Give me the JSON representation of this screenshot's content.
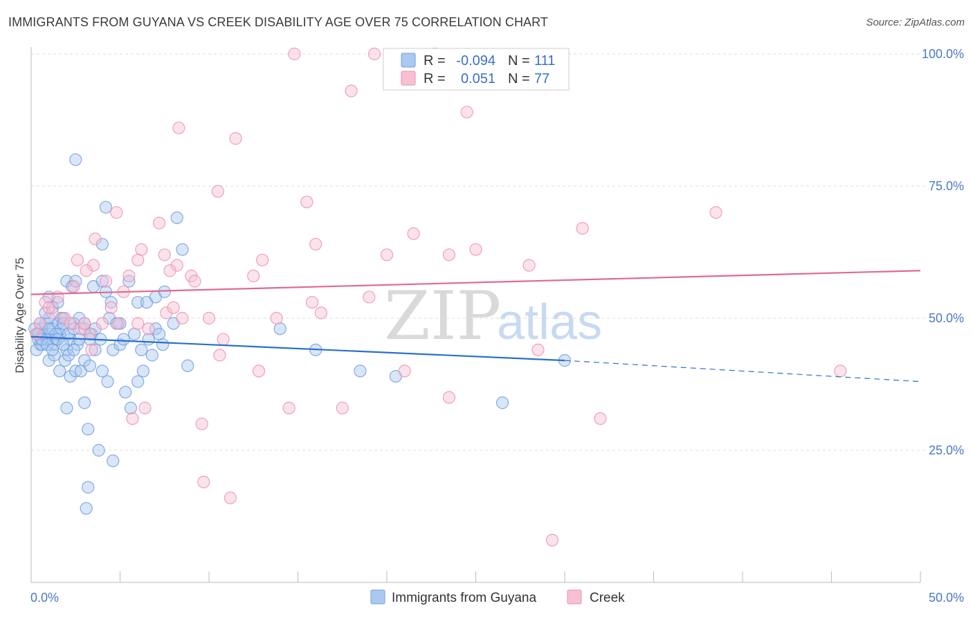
{
  "title": "IMMIGRANTS FROM GUYANA VS CREEK DISABILITY AGE OVER 75 CORRELATION CHART",
  "source": "Source: ZipAtlas.com",
  "legend": {
    "r_label": "R =",
    "n_label": "N =",
    "series1_r": "-0.094",
    "series1_n": "111",
    "series2_r": "0.051",
    "series2_n": "77"
  },
  "watermark": {
    "zip": "ZIP",
    "atlas": "atlas"
  },
  "chart_data": {
    "type": "scatter",
    "ylabel": "Disability Age Over 75",
    "xlim": [
      0,
      50
    ],
    "ylim": [
      0,
      100
    ],
    "x_tick_labels": [
      "0.0%",
      "50.0%"
    ],
    "y_ticks": [
      25,
      50,
      75,
      100
    ],
    "y_tick_labels": [
      "25.0%",
      "50.0%",
      "75.0%",
      "100.0%"
    ],
    "grid": true,
    "legend_position": "top-center",
    "series": [
      {
        "name": "Immigrants from Guyana",
        "color": "#6f9fe0",
        "fill": "#aac8f0",
        "trend": {
          "x0": 0,
          "y0": 46.5,
          "x1": 30,
          "y1": 42.0,
          "dash_to": 50,
          "dash_y": 38.0,
          "color": "#2a6fcc"
        },
        "points": [
          [
            0.3,
            47
          ],
          [
            0.4,
            46
          ],
          [
            0.5,
            45
          ],
          [
            0.6,
            48
          ],
          [
            0.7,
            47
          ],
          [
            0.8,
            49
          ],
          [
            0.9,
            46
          ],
          [
            1.0,
            50
          ],
          [
            1.1,
            47
          ],
          [
            1.2,
            48
          ],
          [
            1.3,
            45
          ],
          [
            1.4,
            46
          ],
          [
            1.5,
            49
          ],
          [
            1.6,
            47
          ],
          [
            1.7,
            48
          ],
          [
            1.8,
            50
          ],
          [
            2.0,
            44
          ],
          [
            2.2,
            46
          ],
          [
            2.4,
            49
          ],
          [
            2.6,
            45
          ],
          [
            0.5,
            49
          ],
          [
            0.8,
            51
          ],
          [
            1.0,
            54
          ],
          [
            1.2,
            52
          ],
          [
            1.5,
            53
          ],
          [
            1.7,
            50
          ],
          [
            2.0,
            57
          ],
          [
            2.3,
            56
          ],
          [
            2.5,
            57
          ],
          [
            3.5,
            56
          ],
          [
            4.0,
            57
          ],
          [
            4.2,
            55
          ],
          [
            4.5,
            53
          ],
          [
            5.0,
            49
          ],
          [
            5.5,
            57
          ],
          [
            6.0,
            53
          ],
          [
            6.5,
            53
          ],
          [
            7.0,
            54
          ],
          [
            7.5,
            55
          ],
          [
            8.0,
            49
          ],
          [
            2.5,
            80
          ],
          [
            4.2,
            71
          ],
          [
            4.0,
            64
          ],
          [
            8.2,
            69
          ],
          [
            8.5,
            63
          ],
          [
            0.3,
            44
          ],
          [
            0.6,
            45
          ],
          [
            1.0,
            42
          ],
          [
            1.3,
            43
          ],
          [
            1.6,
            40
          ],
          [
            1.9,
            42
          ],
          [
            2.2,
            39
          ],
          [
            2.5,
            40
          ],
          [
            2.8,
            40
          ],
          [
            3.0,
            42
          ],
          [
            3.3,
            41
          ],
          [
            3.6,
            44
          ],
          [
            4.0,
            40
          ],
          [
            4.3,
            38
          ],
          [
            4.6,
            44
          ],
          [
            5.0,
            45
          ],
          [
            5.3,
            36
          ],
          [
            5.6,
            33
          ],
          [
            6.0,
            38
          ],
          [
            6.3,
            40
          ],
          [
            6.6,
            46
          ],
          [
            7.0,
            48
          ],
          [
            7.2,
            47
          ],
          [
            3.0,
            34
          ],
          [
            2.0,
            33
          ],
          [
            3.2,
            29
          ],
          [
            3.8,
            25
          ],
          [
            4.6,
            23
          ],
          [
            3.2,
            18
          ],
          [
            3.1,
            14
          ],
          [
            8.8,
            41
          ],
          [
            14.0,
            48
          ],
          [
            16.0,
            44
          ],
          [
            18.5,
            40
          ],
          [
            20.5,
            39
          ],
          [
            26.5,
            34
          ],
          [
            30.0,
            42
          ],
          [
            1.0,
            48
          ],
          [
            1.4,
            47
          ],
          [
            1.8,
            49
          ],
          [
            2.1,
            47
          ],
          [
            2.4,
            48
          ],
          [
            2.7,
            50
          ],
          [
            3.0,
            48
          ],
          [
            3.4,
            47
          ],
          [
            0.2,
            48
          ],
          [
            0.4,
            47
          ],
          [
            0.6,
            46
          ],
          [
            0.9,
            45
          ],
          [
            1.2,
            44
          ],
          [
            1.5,
            46
          ],
          [
            1.8,
            45
          ],
          [
            2.1,
            43
          ],
          [
            2.4,
            44
          ],
          [
            2.7,
            46
          ],
          [
            3.0,
            49
          ],
          [
            3.3,
            46
          ],
          [
            3.6,
            48
          ],
          [
            3.9,
            46
          ],
          [
            4.4,
            50
          ],
          [
            4.8,
            49
          ],
          [
            5.2,
            46
          ],
          [
            5.8,
            47
          ],
          [
            6.2,
            44
          ],
          [
            6.8,
            43
          ],
          [
            7.4,
            45
          ]
        ]
      },
      {
        "name": "Creek",
        "color": "#ee8fae",
        "fill": "#f7c0d2",
        "trend": {
          "x0": 0,
          "y0": 54.5,
          "x1": 50,
          "y1": 59.0,
          "color": "#e06a92"
        },
        "points": [
          [
            14.8,
            100
          ],
          [
            19.3,
            100
          ],
          [
            22.7,
            100
          ],
          [
            18.0,
            93
          ],
          [
            24.5,
            89
          ],
          [
            8.3,
            86
          ],
          [
            11.5,
            84
          ],
          [
            10.5,
            74
          ],
          [
            15.5,
            72
          ],
          [
            38.5,
            70
          ],
          [
            7.2,
            68
          ],
          [
            31.0,
            67
          ],
          [
            21.5,
            66
          ],
          [
            6.2,
            63
          ],
          [
            16.0,
            64
          ],
          [
            25.0,
            63
          ],
          [
            20.0,
            62
          ],
          [
            23.5,
            62
          ],
          [
            13.0,
            61
          ],
          [
            6.0,
            61
          ],
          [
            8.2,
            60
          ],
          [
            28.0,
            60
          ],
          [
            3.5,
            60
          ],
          [
            4.8,
            70
          ],
          [
            3.6,
            65
          ],
          [
            2.6,
            61
          ],
          [
            3.1,
            59
          ],
          [
            4.2,
            57
          ],
          [
            5.5,
            58
          ],
          [
            5.2,
            55
          ],
          [
            2.4,
            56
          ],
          [
            1.5,
            54
          ],
          [
            0.8,
            53
          ],
          [
            1.2,
            51
          ],
          [
            1.9,
            50
          ],
          [
            2.2,
            49
          ],
          [
            2.8,
            48
          ],
          [
            3.3,
            47
          ],
          [
            4.0,
            49
          ],
          [
            4.9,
            49
          ],
          [
            6.0,
            49
          ],
          [
            6.6,
            48
          ],
          [
            7.6,
            51
          ],
          [
            8.5,
            50
          ],
          [
            10.0,
            50
          ],
          [
            13.8,
            50
          ],
          [
            12.5,
            58
          ],
          [
            9.0,
            58
          ],
          [
            9.2,
            57
          ],
          [
            7.8,
            59
          ],
          [
            7.5,
            62
          ],
          [
            15.8,
            53
          ],
          [
            16.3,
            51
          ],
          [
            19.0,
            54
          ],
          [
            0.5,
            49
          ],
          [
            1.0,
            52
          ],
          [
            0.3,
            47
          ],
          [
            3.0,
            49
          ],
          [
            3.4,
            44
          ],
          [
            10.8,
            46
          ],
          [
            10.6,
            43
          ],
          [
            12.8,
            40
          ],
          [
            21.0,
            40
          ],
          [
            28.5,
            44
          ],
          [
            45.5,
            40
          ],
          [
            14.5,
            33
          ],
          [
            17.5,
            33
          ],
          [
            23.5,
            35
          ],
          [
            32.0,
            31
          ],
          [
            6.4,
            33
          ],
          [
            5.7,
            31
          ],
          [
            9.6,
            30
          ],
          [
            9.7,
            19
          ],
          [
            11.2,
            16
          ],
          [
            29.3,
            8
          ],
          [
            8.0,
            52
          ],
          [
            4.5,
            52
          ]
        ]
      }
    ]
  }
}
